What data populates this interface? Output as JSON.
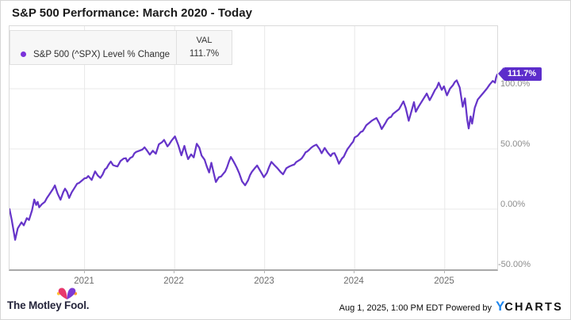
{
  "header": {
    "title": "S&P 500 Performance: March 2020 - Today"
  },
  "legend": {
    "series_label": "S&P 500 (^SPX) Level % Change",
    "val_header": "VAL",
    "val": "111.7%",
    "dot_color": "#7b33da"
  },
  "badge": {
    "label": "111.7%",
    "color": "#5c2dcb"
  },
  "footer": {
    "brand": "The Motley Fool.",
    "timestamp": "Aug 1, 2025, 1:00 PM EDT Powered by",
    "ycharts_y": "Y",
    "ycharts_rest": "CHARTS"
  },
  "chart_data": {
    "type": "line",
    "title": "S&P 500 Performance: March 2020 - Today",
    "series_name": "S&P 500 (^SPX) Level % Change",
    "x_unit": "months since March 2020",
    "xlim": [
      0,
      65
    ],
    "ylim": [
      -50,
      152
    ],
    "grid": true,
    "legend_position": "top-left",
    "x_ticks": {
      "labels": [
        "2021",
        "2022",
        "2023",
        "2024",
        "2025"
      ],
      "positions": [
        10,
        22,
        34,
        46,
        58
      ]
    },
    "y_ticks": {
      "labels": [
        "100.0%",
        "50.00%",
        "0.00%",
        "-50.00%"
      ],
      "values": [
        100,
        50,
        0,
        -50
      ]
    },
    "line_color": "#6635c9",
    "grid_color": "#e8e8e8",
    "end_value_pct": 111.7,
    "points": [
      [
        0,
        0
      ],
      [
        0.3,
        -9
      ],
      [
        0.75,
        -25.5
      ],
      [
        1.1,
        -16
      ],
      [
        1.6,
        -11
      ],
      [
        1.9,
        -13.5
      ],
      [
        2.3,
        -7.5
      ],
      [
        2.6,
        -9
      ],
      [
        3.0,
        -1
      ],
      [
        3.3,
        8
      ],
      [
        3.55,
        3.5
      ],
      [
        3.75,
        6
      ],
      [
        3.95,
        1.5
      ],
      [
        4.3,
        4
      ],
      [
        4.7,
        6
      ],
      [
        5.0,
        9.4
      ],
      [
        5.5,
        14
      ],
      [
        6.05,
        19.7
      ],
      [
        6.4,
        13
      ],
      [
        6.8,
        7.8
      ],
      [
        7.15,
        14
      ],
      [
        7.4,
        17
      ],
      [
        7.95,
        9.3
      ],
      [
        8.3,
        14
      ],
      [
        8.7,
        18
      ],
      [
        9.0,
        21.1
      ],
      [
        9.5,
        23
      ],
      [
        10.0,
        25.6
      ],
      [
        10.5,
        27.5
      ],
      [
        10.95,
        24.2
      ],
      [
        11.4,
        31.3
      ],
      [
        11.75,
        28
      ],
      [
        12.1,
        25.9
      ],
      [
        12.7,
        33
      ],
      [
        13.2,
        37
      ],
      [
        13.5,
        39.5
      ],
      [
        13.8,
        36.5
      ],
      [
        14.4,
        35.5
      ],
      [
        14.8,
        40
      ],
      [
        15.2,
        42
      ],
      [
        15.5,
        42.3
      ],
      [
        15.7,
        39.5
      ],
      [
        16.1,
        42.5
      ],
      [
        16.4,
        43.5
      ],
      [
        16.9,
        47.6
      ],
      [
        17.3,
        48.5
      ],
      [
        17.7,
        49.5
      ],
      [
        18.0,
        51.3
      ],
      [
        18.4,
        48
      ],
      [
        18.7,
        45.3
      ],
      [
        19.1,
        48.5
      ],
      [
        19.5,
        46
      ],
      [
        19.9,
        53.8
      ],
      [
        20.3,
        55.5
      ],
      [
        20.6,
        57.5
      ],
      [
        21.05,
        52.1
      ],
      [
        21.3,
        54
      ],
      [
        21.6,
        57
      ],
      [
        22.05,
        60.4
      ],
      [
        22.5,
        53
      ],
      [
        22.9,
        44.7
      ],
      [
        23.3,
        52.5
      ],
      [
        23.8,
        41.5
      ],
      [
        24.2,
        45.5
      ],
      [
        24.55,
        43
      ],
      [
        24.95,
        54.3
      ],
      [
        25.3,
        51
      ],
      [
        25.6,
        44.5
      ],
      [
        26.0,
        41
      ],
      [
        26.6,
        30.5
      ],
      [
        26.9,
        38.5
      ],
      [
        27.5,
        22.5
      ],
      [
        27.9,
        26.5
      ],
      [
        28.5,
        29.5
      ],
      [
        29.0,
        35
      ],
      [
        29.5,
        43.3
      ],
      [
        30.0,
        38
      ],
      [
        30.6,
        30
      ],
      [
        31.0,
        23
      ],
      [
        31.4,
        19.8
      ],
      [
        31.8,
        24
      ],
      [
        32.3,
        31
      ],
      [
        33.0,
        36.2
      ],
      [
        33.4,
        32
      ],
      [
        33.9,
        26.5
      ],
      [
        34.3,
        30
      ],
      [
        34.9,
        39.2
      ],
      [
        35.3,
        36.5
      ],
      [
        35.7,
        34
      ],
      [
        36.1,
        31
      ],
      [
        36.45,
        28.9
      ],
      [
        36.9,
        34
      ],
      [
        37.3,
        35.5
      ],
      [
        37.7,
        36.5
      ],
      [
        38.2,
        39
      ],
      [
        38.7,
        41
      ],
      [
        39.2,
        44.5
      ],
      [
        39.7,
        48
      ],
      [
        40.2,
        51
      ],
      [
        40.9,
        53.5
      ],
      [
        41.3,
        50
      ],
      [
        41.6,
        46.4
      ],
      [
        42.0,
        50.8
      ],
      [
        42.4,
        47
      ],
      [
        42.8,
        44
      ],
      [
        43.3,
        46.5
      ],
      [
        43.9,
        37.7
      ],
      [
        44.3,
        42
      ],
      [
        44.8,
        47
      ],
      [
        45.3,
        52
      ],
      [
        45.8,
        56
      ],
      [
        46.0,
        59.5
      ],
      [
        46.4,
        61
      ],
      [
        46.8,
        64
      ],
      [
        47.3,
        67
      ],
      [
        47.8,
        71
      ],
      [
        48.3,
        73.5
      ],
      [
        48.9,
        75.7
      ],
      [
        49.3,
        71
      ],
      [
        49.6,
        66.5
      ],
      [
        50.1,
        71.5
      ],
      [
        50.6,
        76
      ],
      [
        51.1,
        79
      ],
      [
        51.5,
        81
      ],
      [
        51.9,
        83
      ],
      [
        52.5,
        89.5
      ],
      [
        52.8,
        84
      ],
      [
        53.2,
        73.4
      ],
      [
        53.6,
        82
      ],
      [
        53.9,
        88.9
      ],
      [
        54.15,
        80.9
      ],
      [
        54.5,
        85
      ],
      [
        54.8,
        88
      ],
      [
        55.2,
        92
      ],
      [
        55.6,
        96
      ],
      [
        56.0,
        90.5
      ],
      [
        56.3,
        94
      ],
      [
        56.7,
        99
      ],
      [
        57.2,
        105
      ],
      [
        57.6,
        99
      ],
      [
        57.9,
        102
      ],
      [
        58.3,
        94.5
      ],
      [
        58.7,
        100
      ],
      [
        59.1,
        103
      ],
      [
        59.6,
        107
      ],
      [
        60.0,
        101
      ],
      [
        60.4,
        85
      ],
      [
        60.7,
        92
      ],
      [
        61.0,
        74
      ],
      [
        61.2,
        67
      ],
      [
        61.45,
        77
      ],
      [
        61.65,
        71
      ],
      [
        62.0,
        84
      ],
      [
        62.4,
        91
      ],
      [
        62.8,
        94
      ],
      [
        63.2,
        97
      ],
      [
        63.6,
        100
      ],
      [
        64.0,
        103.5
      ],
      [
        64.4,
        106.5
      ],
      [
        64.7,
        105
      ],
      [
        64.85,
        109.5
      ],
      [
        65,
        111.7
      ]
    ]
  }
}
